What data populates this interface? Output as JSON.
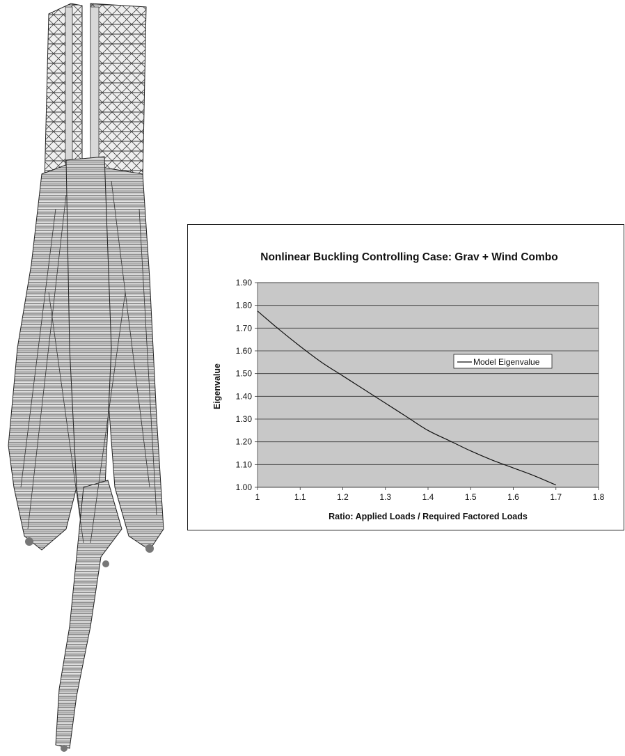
{
  "tower_model": {
    "icon": "tower-wireframe-model-icon"
  },
  "chart_data": {
    "type": "line",
    "title": "Nonlinear Buckling Controlling Case: Grav + Wind Combo",
    "xlabel": "Ratio: Applied Loads / Required Factored Loads",
    "ylabel": "Eigenvalue",
    "xlim": [
      1,
      1.8
    ],
    "ylim": [
      1.0,
      1.9
    ],
    "xticks": [
      "1",
      "1.1",
      "1.2",
      "1.3",
      "1.4",
      "1.5",
      "1.6",
      "1.7",
      "1.8"
    ],
    "yticks": [
      "1.00",
      "1.10",
      "1.20",
      "1.30",
      "1.40",
      "1.50",
      "1.60",
      "1.70",
      "1.80",
      "1.90"
    ],
    "grid": true,
    "plot_background": "#c8c8c8",
    "line_color": "#111111",
    "legend_position": "right",
    "series": [
      {
        "name": "Model Eigenvalue",
        "x": [
          1.0,
          1.05,
          1.1,
          1.15,
          1.2,
          1.25,
          1.3,
          1.35,
          1.4,
          1.45,
          1.5,
          1.55,
          1.6,
          1.65,
          1.7
        ],
        "y": [
          1.775,
          1.695,
          1.62,
          1.55,
          1.49,
          1.43,
          1.37,
          1.31,
          1.25,
          1.205,
          1.16,
          1.12,
          1.085,
          1.05,
          1.01
        ]
      }
    ]
  }
}
